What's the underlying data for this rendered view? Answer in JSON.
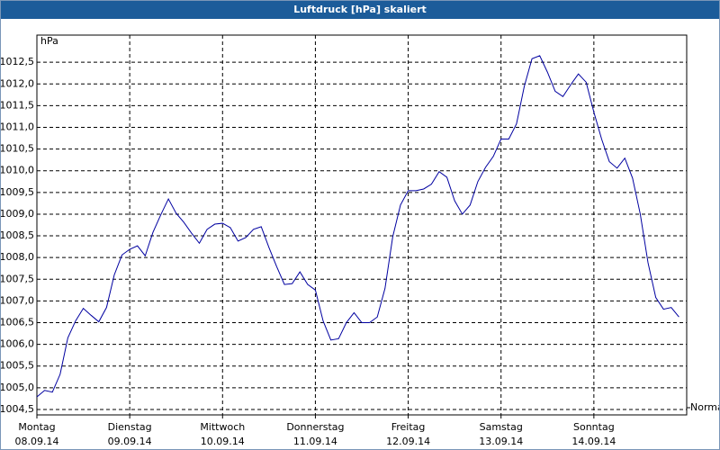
{
  "chart_data": {
    "type": "line",
    "title": "Luftdruck [hPa] skaliert",
    "ylabel": "hPa",
    "xlim": [
      0,
      168
    ],
    "ylim": [
      1004.375,
      1013.125
    ],
    "xticks": [
      {
        "value": 0,
        "label": "Montag",
        "date": "08.09.14"
      },
      {
        "value": 24,
        "label": "Dienstag",
        "date": "09.09.14"
      },
      {
        "value": 48,
        "label": "Mittwoch",
        "date": "10.09.14"
      },
      {
        "value": 72,
        "label": "Donnerstag",
        "date": "11.09.14"
      },
      {
        "value": 96,
        "label": "Freitag",
        "date": "12.09.14"
      },
      {
        "value": 120,
        "label": "Samstag",
        "date": "13.09.14"
      },
      {
        "value": 144,
        "label": "Sonntag",
        "date": "14.09.14"
      }
    ],
    "yticks": [
      {
        "value": 1004.5,
        "label": "1004,5"
      },
      {
        "value": 1005,
        "label": "1005,0"
      },
      {
        "value": 1005.5,
        "label": "1005,5"
      },
      {
        "value": 1006,
        "label": "1006,0"
      },
      {
        "value": 1006.5,
        "label": "1006,5"
      },
      {
        "value": 1007,
        "label": "1007,0"
      },
      {
        "value": 1007.5,
        "label": "1007,5"
      },
      {
        "value": 1008,
        "label": "1008,0"
      },
      {
        "value": 1008.5,
        "label": "1008,5"
      },
      {
        "value": 1009,
        "label": "1009,0"
      },
      {
        "value": 1009.5,
        "label": "1009,5"
      },
      {
        "value": 1010,
        "label": "1010,0"
      },
      {
        "value": 1010.5,
        "label": "1010,5"
      },
      {
        "value": 1011,
        "label": "1011,0"
      },
      {
        "value": 1011.5,
        "label": "1011,5"
      },
      {
        "value": 1012,
        "label": "1012,0"
      },
      {
        "value": 1012.5,
        "label": "1012,5"
      }
    ],
    "grid": true,
    "x": [
      0,
      2,
      4,
      6,
      8,
      10,
      12,
      14,
      16,
      18,
      20,
      22,
      24,
      26,
      28,
      30,
      32,
      34,
      36,
      38,
      40,
      42,
      44,
      46,
      48,
      50,
      52,
      54,
      56,
      58,
      60,
      62,
      64,
      66,
      68,
      70,
      72,
      74,
      76,
      78,
      80,
      82,
      84,
      86,
      88,
      90,
      92,
      94,
      96,
      98,
      100,
      102,
      104,
      106,
      108,
      110,
      112,
      114,
      116,
      118,
      120,
      122,
      124,
      126,
      128,
      130,
      132,
      134,
      136,
      138,
      140,
      142,
      144,
      146,
      148,
      150,
      152,
      154,
      156,
      158,
      160,
      162,
      164,
      166
    ],
    "series": [
      {
        "name": "Normal",
        "color": "#0000a0",
        "values": [
          1004.79,
          1004.94,
          1004.9,
          1005.31,
          1006.15,
          1006.54,
          1006.83,
          1006.67,
          1006.52,
          1006.85,
          1007.6,
          1008.06,
          1008.19,
          1008.27,
          1008.04,
          1008.58,
          1008.98,
          1009.35,
          1009.02,
          1008.81,
          1008.56,
          1008.33,
          1008.65,
          1008.77,
          1008.79,
          1008.69,
          1008.38,
          1008.46,
          1008.65,
          1008.71,
          1008.23,
          1007.79,
          1007.38,
          1007.4,
          1007.67,
          1007.38,
          1007.25,
          1006.54,
          1006.1,
          1006.13,
          1006.5,
          1006.73,
          1006.5,
          1006.5,
          1006.63,
          1007.29,
          1008.48,
          1009.21,
          1009.54,
          1009.54,
          1009.58,
          1009.69,
          1009.98,
          1009.85,
          1009.31,
          1009.0,
          1009.21,
          1009.75,
          1010.08,
          1010.33,
          1010.73,
          1010.73,
          1011.08,
          1011.94,
          1012.58,
          1012.65,
          1012.27,
          1011.83,
          1011.71,
          1011.98,
          1012.23,
          1012.04,
          1011.35,
          1010.73,
          1010.21,
          1010.06,
          1010.29,
          1009.83,
          1009.0,
          1007.88,
          1007.08,
          1006.81,
          1006.85,
          1006.63
        ]
      }
    ]
  }
}
